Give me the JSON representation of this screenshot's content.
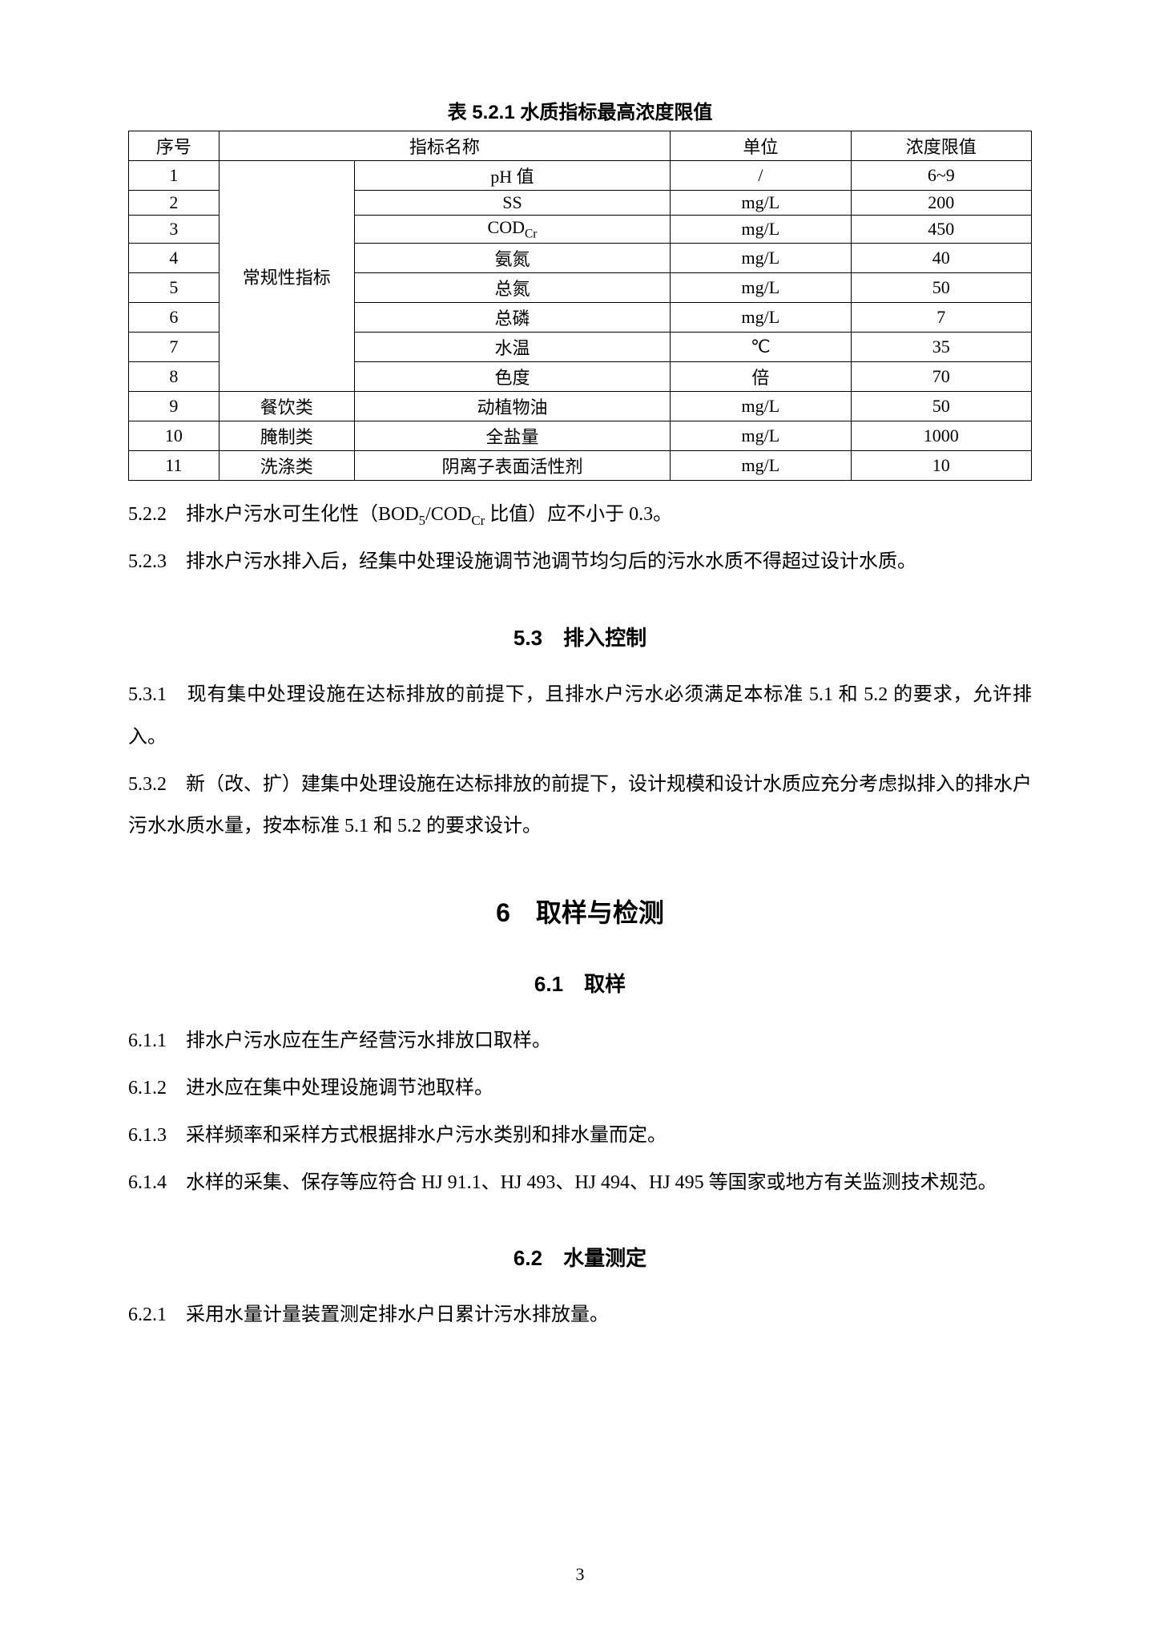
{
  "table": {
    "caption": "表 5.2.1 水质指标最高浓度限值",
    "headers": {
      "seq": "序号",
      "name": "指标名称",
      "unit": "单位",
      "limit": "浓度限值"
    },
    "group_label": "常规性指标",
    "rows": [
      {
        "seq": "1",
        "cat": "group",
        "name": "pH 值",
        "unit": "/",
        "limit": "6~9"
      },
      {
        "seq": "2",
        "cat": "group",
        "name": "SS",
        "unit": "mg/L",
        "limit": "200"
      },
      {
        "seq": "3",
        "cat": "group",
        "name": "COD_Cr",
        "unit": "mg/L",
        "limit": "450"
      },
      {
        "seq": "4",
        "cat": "group",
        "name": "氨氮",
        "unit": "mg/L",
        "limit": "40"
      },
      {
        "seq": "5",
        "cat": "group",
        "name": "总氮",
        "unit": "mg/L",
        "limit": "50"
      },
      {
        "seq": "6",
        "cat": "group",
        "name": "总磷",
        "unit": "mg/L",
        "limit": "7"
      },
      {
        "seq": "7",
        "cat": "group",
        "name": "水温",
        "unit": "℃",
        "limit": "35"
      },
      {
        "seq": "8",
        "cat": "group",
        "name": "色度",
        "unit": "倍",
        "limit": "70"
      },
      {
        "seq": "9",
        "cat": "餐饮类",
        "name": "动植物油",
        "unit": "mg/L",
        "limit": "50"
      },
      {
        "seq": "10",
        "cat": "腌制类",
        "name": "全盐量",
        "unit": "mg/L",
        "limit": "1000"
      },
      {
        "seq": "11",
        "cat": "洗涤类",
        "name": "阴离子表面活性剂",
        "unit": "mg/L",
        "limit": "10"
      }
    ]
  },
  "paras": {
    "p522": "5.2.2　排水户污水可生化性（BOD₅/COD_Cr 比值）应不小于 0.3。",
    "p523": "5.2.3　排水户污水排入后，经集中处理设施调节池调节均匀后的污水水质不得超过设计水质。",
    "h53": "5.3　排入控制",
    "p531": "5.3.1　现有集中处理设施在达标排放的前提下，且排水户污水必须满足本标准 5.1 和 5.2 的要求，允许排入。",
    "p532": "5.3.2　新（改、扩）建集中处理设施在达标排放的前提下，设计规模和设计水质应充分考虑拟排入的排水户污水水质水量，按本标准 5.1 和 5.2 的要求设计。",
    "h6": "6　取样与检测",
    "h61": "6.1　取样",
    "p611": "6.1.1　排水户污水应在生产经营污水排放口取样。",
    "p612": "6.1.2　进水应在集中处理设施调节池取样。",
    "p613": "6.1.3　采样频率和采样方式根据排水户污水类别和排水量而定。",
    "p614": "6.1.4　水样的采集、保存等应符合 HJ 91.1、HJ 493、HJ 494、HJ 495 等国家或地方有关监测技术规范。",
    "h62": "6.2　水量测定",
    "p621": "6.2.1　采用水量计量装置测定排水户日累计污水排放量。"
  },
  "page_number": "3"
}
